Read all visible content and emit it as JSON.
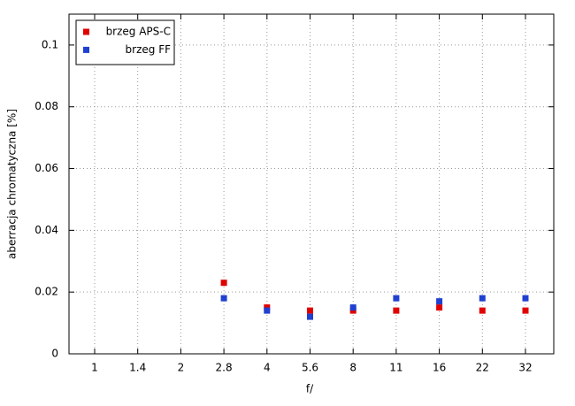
{
  "chart_data": {
    "type": "scatter",
    "x_label": "f/",
    "y_label": "aberracja chromatyczna [%]",
    "categories": [
      "1",
      "1.4",
      "2",
      "2.8",
      "4",
      "5.6",
      "8",
      "11",
      "16",
      "22",
      "32"
    ],
    "series": [
      {
        "name": "brzeg APS-C",
        "color": "#e00000",
        "values": [
          null,
          null,
          null,
          0.023,
          0.015,
          0.014,
          0.014,
          0.014,
          0.015,
          0.014,
          0.014
        ]
      },
      {
        "name": "brzeg FF",
        "color": "#2040d0",
        "values": [
          null,
          null,
          null,
          0.018,
          0.014,
          0.012,
          0.015,
          0.018,
          0.017,
          0.018,
          0.018
        ]
      }
    ],
    "ylim": [
      0,
      0.11
    ],
    "yticks": [
      0,
      0.02,
      0.04,
      0.06,
      0.08,
      0.1
    ],
    "grid": true,
    "legend": "top-left"
  }
}
